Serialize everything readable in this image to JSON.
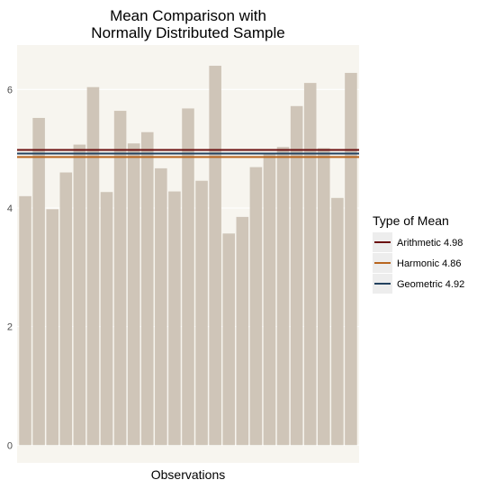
{
  "colors": {
    "panel": "#f7f5ef",
    "grid": "#ffffff",
    "bar": "#cfc5b8",
    "arithmetic": "#6b0f0f",
    "harmonic": "#b8651f",
    "geometric": "#23415f",
    "legend_key_bg": "#ededed"
  },
  "chart_data": {
    "type": "bar",
    "title": "Mean Comparison with\nNormally Distributed Sample",
    "xlabel": "Observations",
    "ylabel": "",
    "ylim": [
      -0.3,
      6.75
    ],
    "yticks": [
      0,
      2,
      4,
      6
    ],
    "grid": true,
    "values": [
      4.2,
      5.52,
      3.98,
      4.6,
      5.07,
      6.04,
      4.27,
      5.64,
      5.09,
      5.28,
      4.67,
      4.28,
      5.68,
      4.46,
      6.4,
      3.57,
      3.85,
      4.69,
      4.92,
      5.03,
      5.72,
      6.11,
      5.01,
      4.17,
      6.28
    ],
    "hlines": [
      {
        "name": "Arithmetic 4.98",
        "value": 4.98,
        "color_key": "arithmetic"
      },
      {
        "name": "Harmonic 4.86",
        "value": 4.86,
        "color_key": "harmonic"
      },
      {
        "name": "Geometric 4.92",
        "value": 4.92,
        "color_key": "geometric"
      }
    ],
    "legend": {
      "title": "Type of Mean",
      "position": "right",
      "entries": [
        "Arithmetic 4.98",
        "Harmonic 4.86",
        "Geometric 4.92"
      ]
    }
  }
}
